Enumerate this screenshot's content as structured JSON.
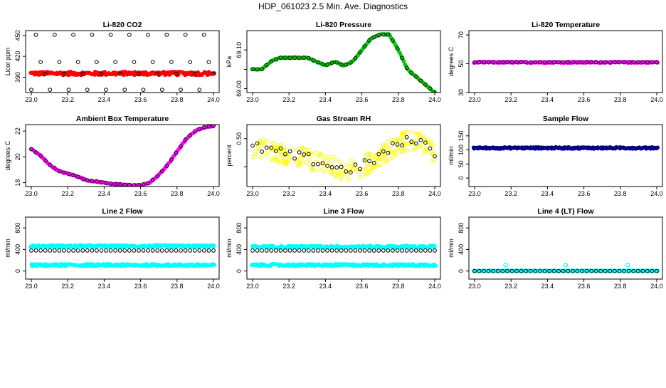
{
  "title": "HDP_061023  2.5 Min. Ave. Diagnostics",
  "chart_data": [
    {
      "type": "scatter",
      "title": "Li-820 CO2",
      "ylabel": "Licor ppm",
      "xlim": [
        23.0,
        24.0
      ],
      "ylim": [
        368,
        457
      ],
      "x_ticks": [
        "23.0",
        "23.2",
        "23.4",
        "23.6",
        "23.8",
        "24.0"
      ],
      "y_ticks": [
        360,
        390,
        420,
        450
      ],
      "series": [
        {
          "color": "#ff0000",
          "style": "band",
          "band": [
            393,
            398
          ]
        },
        {
          "color": "#000000",
          "style": "open-circle",
          "levels": [
            372,
            395,
            412,
            451
          ]
        }
      ]
    },
    {
      "type": "scatter",
      "title": "Li-820 Pressure",
      "ylabel": "kPa",
      "xlim": [
        23.0,
        24.0
      ],
      "ylim": [
        68.99,
        69.15
      ],
      "x_ticks": [
        "23.0",
        "23.2",
        "23.4",
        "23.6",
        "23.8",
        "24.0"
      ],
      "y_ticks": [
        69.0,
        69.05,
        69.1
      ],
      "y_tick_labels": [
        "69.00",
        "",
        "69.10"
      ],
      "series": [
        {
          "color": "#00cc00",
          "style": "filled",
          "x": [
            23.0,
            23.05,
            23.1,
            23.15,
            23.2,
            23.25,
            23.3,
            23.35,
            23.4,
            23.45,
            23.5,
            23.55,
            23.6,
            23.65,
            23.7,
            23.75,
            23.8,
            23.85,
            23.9,
            23.95,
            24.0
          ],
          "y": [
            69.05,
            69.05,
            69.07,
            69.08,
            69.08,
            69.08,
            69.08,
            69.07,
            69.06,
            69.07,
            69.06,
            69.07,
            69.1,
            69.13,
            69.14,
            69.14,
            69.1,
            69.05,
            69.03,
            69.01,
            68.99
          ]
        }
      ]
    },
    {
      "type": "scatter",
      "title": "Li-820 Temperature",
      "ylabel": "degrees C",
      "xlim": [
        23.0,
        24.0
      ],
      "ylim": [
        30,
        73
      ],
      "x_ticks": [
        "23.0",
        "23.2",
        "23.4",
        "23.6",
        "23.8",
        "24.0"
      ],
      "y_ticks": [
        30,
        50,
        70
      ],
      "series": [
        {
          "color": "#ff00ff",
          "style": "band",
          "band": [
            50.6,
            51.4
          ]
        },
        {
          "color": "#000000",
          "style": "open-circle",
          "levels": [
            51
          ]
        }
      ]
    },
    {
      "type": "scatter",
      "title": "Ambient Box Temperature",
      "ylabel": "degrees C",
      "xlim": [
        23.0,
        24.0
      ],
      "ylim": [
        17.7,
        22.5
      ],
      "x_ticks": [
        "23.0",
        "23.2",
        "23.4",
        "23.6",
        "23.8",
        "24.0"
      ],
      "y_ticks": [
        18,
        20,
        22
      ],
      "series": [
        {
          "color": "#ff00ff",
          "style": "filled",
          "x": [
            23.0,
            23.05,
            23.1,
            23.15,
            23.2,
            23.25,
            23.3,
            23.35,
            23.4,
            23.45,
            23.5,
            23.55,
            23.6,
            23.65,
            23.7,
            23.75,
            23.8,
            23.85,
            23.9,
            23.95,
            24.0
          ],
          "y": [
            20.6,
            20.1,
            19.4,
            18.9,
            18.7,
            18.5,
            18.2,
            18.1,
            18.0,
            17.9,
            17.85,
            17.8,
            17.8,
            18.0,
            18.6,
            19.4,
            20.4,
            21.4,
            22.0,
            22.3,
            22.4
          ]
        }
      ]
    },
    {
      "type": "scatter",
      "title": "Gas Stream RH",
      "ylabel": "percent",
      "xlim": [
        23.0,
        24.0
      ],
      "ylim": [
        0.415,
        0.525
      ],
      "x_ticks": [
        "23.0",
        "23.2",
        "23.4",
        "23.6",
        "23.8",
        "24.0"
      ],
      "y_ticks": [
        0.4,
        0.45,
        0.5
      ],
      "y_tick_labels": [
        "0.40",
        "",
        "0.50"
      ],
      "series": [
        {
          "color": "#ffff00",
          "style": "noisy",
          "noise": 0.018,
          "x": [
            23.0,
            23.1,
            23.2,
            23.3,
            23.4,
            23.5,
            23.6,
            23.7,
            23.8,
            23.9,
            24.0
          ],
          "y": [
            0.485,
            0.48,
            0.47,
            0.465,
            0.455,
            0.445,
            0.45,
            0.47,
            0.49,
            0.5,
            0.475
          ]
        }
      ]
    },
    {
      "type": "scatter",
      "title": "Sample Flow",
      "ylabel": "ml/min",
      "xlim": [
        23.0,
        24.0
      ],
      "ylim": [
        -30,
        190
      ],
      "x_ticks": [
        "23.0",
        "23.2",
        "23.4",
        "23.6",
        "23.8",
        "24.0"
      ],
      "y_ticks": [
        0,
        50,
        100,
        150
      ],
      "series": [
        {
          "color": "#0000cc",
          "style": "band",
          "band": [
            104,
            110
          ]
        },
        {
          "color": "#000000",
          "style": "open-circle",
          "levels": [
            107
          ]
        }
      ]
    },
    {
      "type": "scatter",
      "title": "Line 2 Flow",
      "ylabel": "ml/min",
      "xlim": [
        23.0,
        24.0
      ],
      "ylim": [
        -150,
        1000
      ],
      "x_ticks": [
        "23.0",
        "23.2",
        "23.4",
        "23.6",
        "23.8",
        "24.0"
      ],
      "y_ticks": [
        0,
        400,
        800
      ],
      "series": [
        {
          "color": "#00ffff",
          "style": "band",
          "band": [
            440,
            480
          ]
        },
        {
          "color": "#00ffff",
          "style": "band",
          "band": [
            90,
            130
          ]
        },
        {
          "color": "#000000",
          "style": "open-circle",
          "levels": [
            380
          ]
        }
      ]
    },
    {
      "type": "scatter",
      "title": "Line 3 Flow",
      "ylabel": "ml/min",
      "xlim": [
        23.0,
        24.0
      ],
      "ylim": [
        -150,
        1000
      ],
      "x_ticks": [
        "23.0",
        "23.2",
        "23.4",
        "23.6",
        "23.8",
        "24.0"
      ],
      "y_ticks": [
        0,
        400,
        800
      ],
      "series": [
        {
          "color": "#00ffff",
          "style": "band",
          "band": [
            430,
            470
          ]
        },
        {
          "color": "#00ffff",
          "style": "band",
          "band": [
            90,
            130
          ]
        },
        {
          "color": "#000000",
          "style": "open-circle",
          "levels": [
            380
          ]
        }
      ]
    },
    {
      "type": "scatter",
      "title": "Line 4 (LT) Flow",
      "ylabel": "ml/min",
      "xlim": [
        23.0,
        24.0
      ],
      "ylim": [
        -150,
        1000
      ],
      "x_ticks": [
        "23.0",
        "23.2",
        "23.4",
        "23.6",
        "23.8",
        "24.0"
      ],
      "y_ticks": [
        0,
        400,
        800
      ],
      "series": [
        {
          "color": "#00ffff",
          "style": "band",
          "band": [
            0,
            8
          ]
        },
        {
          "color": "#000000",
          "style": "open-circle",
          "levels": [
            0
          ]
        },
        {
          "color": "#00ffff",
          "style": "points",
          "x": [
            23.17,
            23.5,
            23.84
          ],
          "y": [
            110,
            110,
            110
          ]
        }
      ]
    }
  ]
}
